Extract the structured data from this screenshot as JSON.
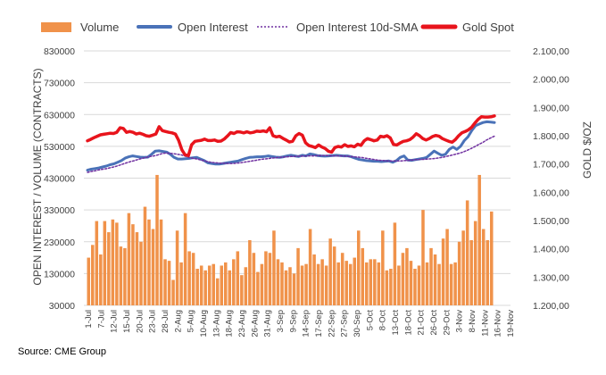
{
  "colors": {
    "volume": "#F0924A",
    "open_interest": "#4A72B8",
    "sma": "#7030A0",
    "gold": "#E8141C"
  },
  "source_text": "Source: CME Group",
  "chart_data": {
    "type": "bar",
    "title": "",
    "legend": {
      "placement": "top",
      "entries": [
        "Volume",
        "Open Interest",
        "Open Interest 10d-SMA",
        "Gold Spot"
      ]
    },
    "ylabel_left": "OPEN INTEREST / VOLUME (CONTRACTS)",
    "ylabel_right": "GOLD $/OZ",
    "ylim_left": [
      30000,
      830000
    ],
    "ylim_right": [
      1200,
      2100
    ],
    "left_ticks": [
      "30000",
      "130000",
      "230000",
      "330000",
      "430000",
      "530000",
      "630000",
      "730000",
      "830000"
    ],
    "right_ticks": [
      "1.200,00",
      "1.300,00",
      "1.400,00",
      "1.500,00",
      "1.600,00",
      "1.700,00",
      "1.800,00",
      "1.900,00",
      "2.000,00",
      "2.100,00"
    ],
    "x_tick_labels": [
      "1-Jul",
      "7-Jul",
      "12-Jul",
      "15-Jul",
      "20-Jul",
      "23-Jul",
      "28-Jul",
      "2-Aug",
      "5-Aug",
      "10-Aug",
      "13-Aug",
      "18-Aug",
      "23-Aug",
      "26-Aug",
      "31-Aug",
      "3-Sep",
      "9-Sep",
      "14-Sep",
      "17-Sep",
      "22-Sep",
      "27-Sep",
      "30-Sep",
      "5-Oct",
      "8-Oct",
      "13-Oct",
      "18-Oct",
      "21-Oct",
      "26-Oct",
      "29-Oct",
      "3-Nov",
      "8-Nov",
      "11-Nov",
      "16-Nov",
      "19-Nov"
    ],
    "grid": true,
    "series": [
      {
        "name": "Volume",
        "type": "bar",
        "axis": "left",
        "values": [
          180000,
          220000,
          295000,
          190000,
          295000,
          260000,
          300000,
          290000,
          215000,
          210000,
          320000,
          285000,
          260000,
          230000,
          340000,
          300000,
          270000,
          440000,
          300000,
          175000,
          170000,
          110000,
          265000,
          165000,
          320000,
          200000,
          195000,
          145000,
          155000,
          140000,
          155000,
          160000,
          115000,
          155000,
          165000,
          140000,
          175000,
          200000,
          125000,
          150000,
          235000,
          195000,
          135000,
          160000,
          200000,
          195000,
          265000,
          175000,
          165000,
          140000,
          150000,
          130000,
          210000,
          155000,
          160000,
          270000,
          190000,
          160000,
          175000,
          155000,
          240000,
          215000,
          165000,
          195000,
          170000,
          160000,
          180000,
          265000,
          210000,
          165000,
          175000,
          175000,
          165000,
          265000,
          140000,
          145000,
          290000,
          155000,
          195000,
          210000,
          170000,
          145000,
          155000,
          330000,
          165000,
          210000,
          190000,
          160000,
          240000,
          270000,
          160000,
          165000,
          230000,
          265000,
          360000,
          235000,
          295000,
          440000,
          270000,
          235000,
          325000
        ]
      },
      {
        "name": "Open Interest",
        "type": "line",
        "axis": "left",
        "values": [
          455000,
          458000,
          460000,
          462000,
          465000,
          468000,
          472000,
          475000,
          480000,
          485000,
          493000,
          497000,
          500000,
          498000,
          496000,
          495000,
          496000,
          505000,
          515000,
          516000,
          514000,
          512000,
          505000,
          495000,
          490000,
          490000,
          491000,
          492000,
          494000,
          495000,
          490000,
          485000,
          478000,
          476000,
          474000,
          474000,
          476000,
          478000,
          480000,
          482000,
          484000,
          488000,
          492000,
          495000,
          496000,
          497000,
          497000,
          498000,
          500000,
          498000,
          496000,
          495000,
          497000,
          500000,
          502000,
          500000,
          498000,
          502000,
          500000,
          506000,
          504000,
          501000,
          500000,
          499000,
          500000,
          501000,
          502000,
          501000,
          500000,
          500000,
          497000,
          493000,
          489000,
          487000,
          485000,
          484000,
          483000,
          483000,
          482000,
          483000,
          484000,
          480000,
          485000,
          495000,
          500000,
          487000,
          486000,
          488000,
          490000,
          492000,
          495000,
          505000,
          515000,
          508000,
          502000,
          505000,
          520000,
          528000,
          520000,
          530000,
          548000,
          560000,
          580000,
          595000,
          600000,
          605000,
          607000,
          606000,
          605000
        ]
      },
      {
        "name": "Open Interest 10d-SMA",
        "type": "line",
        "axis": "left",
        "values": [
          448000,
          451000,
          453000,
          456000,
          458000,
          460000,
          463000,
          466000,
          470000,
          474000,
          478000,
          482000,
          485000,
          489000,
          492000,
          495000,
          498000,
          500000,
          503000,
          507000,
          509000,
          508000,
          507000,
          505000,
          503000,
          499000,
          495000,
          492000,
          490000,
          487000,
          484000,
          481000,
          479000,
          478000,
          477000,
          477000,
          476000,
          476000,
          477000,
          478000,
          480000,
          482000,
          484000,
          486000,
          488000,
          490000,
          491000,
          493000,
          494000,
          495000,
          496000,
          497000,
          498000,
          498000,
          499000,
          499000,
          500000,
          500000,
          500000,
          501000,
          501000,
          501000,
          501000,
          500000,
          500000,
          500000,
          499000,
          498000,
          497000,
          496000,
          495000,
          493000,
          491000,
          489000,
          487000,
          486000,
          485000,
          484000,
          484000,
          484000,
          484000,
          485000,
          486000,
          487000,
          488000,
          489000,
          489000,
          490000,
          491000,
          492000,
          494000,
          496000,
          499000,
          502000,
          505000,
          508000,
          512000,
          517000,
          523000,
          529000,
          536000,
          542000,
          550000,
          556000,
          562000
        ]
      },
      {
        "name": "Gold Spot",
        "type": "line",
        "axis": "right",
        "values": [
          1782,
          1787,
          1793,
          1798,
          1803,
          1805,
          1807,
          1809,
          1808,
          1812,
          1828,
          1826,
          1812,
          1815,
          1812,
          1806,
          1809,
          1805,
          1800,
          1798,
          1802,
          1806,
          1832,
          1818,
          1815,
          1812,
          1810,
          1806,
          1784,
          1750,
          1732,
          1730,
          1768,
          1780,
          1782,
          1784,
          1788,
          1783,
          1783,
          1785,
          1780,
          1781,
          1788,
          1799,
          1811,
          1808,
          1814,
          1813,
          1810,
          1814,
          1810,
          1812,
          1816,
          1815,
          1817,
          1814,
          1828,
          1800,
          1796,
          1798,
          1791,
          1785,
          1778,
          1780,
          1800,
          1808,
          1802,
          1775,
          1765,
          1762,
          1758,
          1767,
          1760,
          1755,
          1745,
          1742,
          1758,
          1762,
          1760,
          1768,
          1762,
          1764,
          1761,
          1770,
          1766,
          1782,
          1790,
          1786,
          1782,
          1785,
          1798,
          1796,
          1800,
          1792,
          1769,
          1767,
          1774,
          1780,
          1782,
          1786,
          1795,
          1807,
          1800,
          1790,
          1785,
          1790,
          1797,
          1801,
          1798,
          1790,
          1785,
          1780,
          1777,
          1786,
          1800,
          1810,
          1815,
          1821,
          1830,
          1845,
          1858,
          1867,
          1866,
          1866,
          1867,
          1870
        ]
      }
    ]
  }
}
